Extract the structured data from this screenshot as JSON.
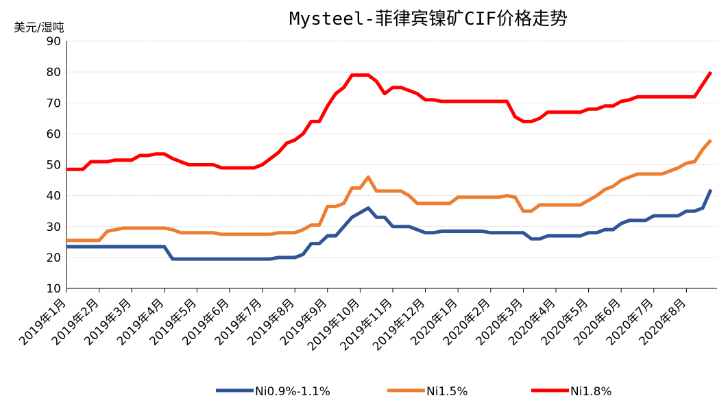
{
  "chart_data": {
    "type": "line",
    "title": "Mysteel-菲律宾镍矿CIF价格走势",
    "y_label": "美元/湿吨",
    "categories": [
      "2019年1月",
      null,
      null,
      null,
      "2019年2月",
      null,
      null,
      null,
      "2019年3月",
      null,
      null,
      null,
      "2019年4月",
      null,
      null,
      null,
      "2019年5月",
      null,
      null,
      null,
      "2019年6月",
      null,
      null,
      null,
      "2019年7月",
      null,
      null,
      null,
      "2019年8月",
      null,
      null,
      null,
      "2019年9月",
      null,
      null,
      null,
      "2019年10月",
      null,
      null,
      null,
      "2019年11月",
      null,
      null,
      null,
      "2019年12月",
      null,
      null,
      null,
      "2020年1月",
      null,
      null,
      null,
      "2020年2月",
      null,
      null,
      null,
      "2020年3月",
      null,
      null,
      null,
      "2020年4月",
      null,
      null,
      null,
      "2020年5月",
      null,
      null,
      null,
      "2020年6月",
      null,
      null,
      null,
      "2020年7月",
      null,
      null,
      null,
      "2020年8月",
      null,
      null,
      null
    ],
    "series": [
      {
        "name": "Ni0.9%-1.1%",
        "color": "#2f5597",
        "values": [
          23.5,
          23.5,
          23.5,
          23.5,
          23.5,
          23.5,
          23.5,
          23.5,
          23.5,
          23.5,
          23.5,
          23.5,
          23.5,
          19.5,
          19.5,
          19.5,
          19.5,
          19.5,
          19.5,
          19.5,
          19.5,
          19.5,
          19.5,
          19.5,
          19.5,
          19.5,
          20,
          20,
          20,
          21,
          24.5,
          24.5,
          27,
          27,
          30,
          33,
          34.5,
          36,
          33,
          33,
          30,
          30,
          30,
          29,
          28,
          28,
          28.5,
          28.5,
          28.5,
          28.5,
          28.5,
          28.5,
          28,
          28,
          28,
          28,
          28,
          26,
          26,
          27,
          27,
          27,
          27,
          27,
          28,
          28,
          29,
          29,
          31,
          32,
          32,
          32,
          33.5,
          33.5,
          33.5,
          33.5,
          35,
          35,
          36,
          42
        ]
      },
      {
        "name": "Ni1.5%",
        "color": "#ed7d31",
        "values": [
          25.5,
          25.5,
          25.5,
          25.5,
          25.5,
          28.5,
          29,
          29.5,
          29.5,
          29.5,
          29.5,
          29.5,
          29.5,
          29,
          28,
          28,
          28,
          28,
          28,
          27.5,
          27.5,
          27.5,
          27.5,
          27.5,
          27.5,
          27.5,
          28,
          28,
          28,
          29,
          30.5,
          30.5,
          36.5,
          36.5,
          37.5,
          42.5,
          42.5,
          46,
          41.5,
          41.5,
          41.5,
          41.5,
          40,
          37.5,
          37.5,
          37.5,
          37.5,
          37.5,
          39.5,
          39.5,
          39.5,
          39.5,
          39.5,
          39.5,
          40,
          39.5,
          35,
          35,
          37,
          37,
          37,
          37,
          37,
          37,
          38.5,
          40,
          42,
          43,
          45,
          46,
          47,
          47,
          47,
          47,
          48,
          49,
          50.5,
          51,
          55,
          58
        ]
      },
      {
        "name": "Ni1.8%",
        "color": "#ff0000",
        "values": [
          48.5,
          48.5,
          48.5,
          51,
          51,
          51,
          51.5,
          51.5,
          51.5,
          53,
          53,
          53.5,
          53.5,
          52,
          51,
          50,
          50,
          50,
          50,
          49,
          49,
          49,
          49,
          49,
          50,
          52,
          54,
          57,
          58,
          60,
          64,
          64,
          69,
          73,
          75,
          79,
          79,
          79,
          77,
          73,
          75,
          75,
          74,
          73,
          71,
          71,
          70.5,
          70.5,
          70.5,
          70.5,
          70.5,
          70.5,
          70.5,
          70.5,
          70.5,
          65.5,
          64,
          64,
          65,
          67,
          67,
          67,
          67,
          67,
          68,
          68,
          69,
          69,
          70.5,
          71,
          72,
          72,
          72,
          72,
          72,
          72,
          72,
          72,
          76,
          80
        ]
      }
    ],
    "ylim": [
      10,
      90
    ],
    "yticks": [
      10,
      20,
      30,
      40,
      50,
      60,
      70,
      80,
      90
    ],
    "grid": true,
    "legend": "bottom"
  }
}
